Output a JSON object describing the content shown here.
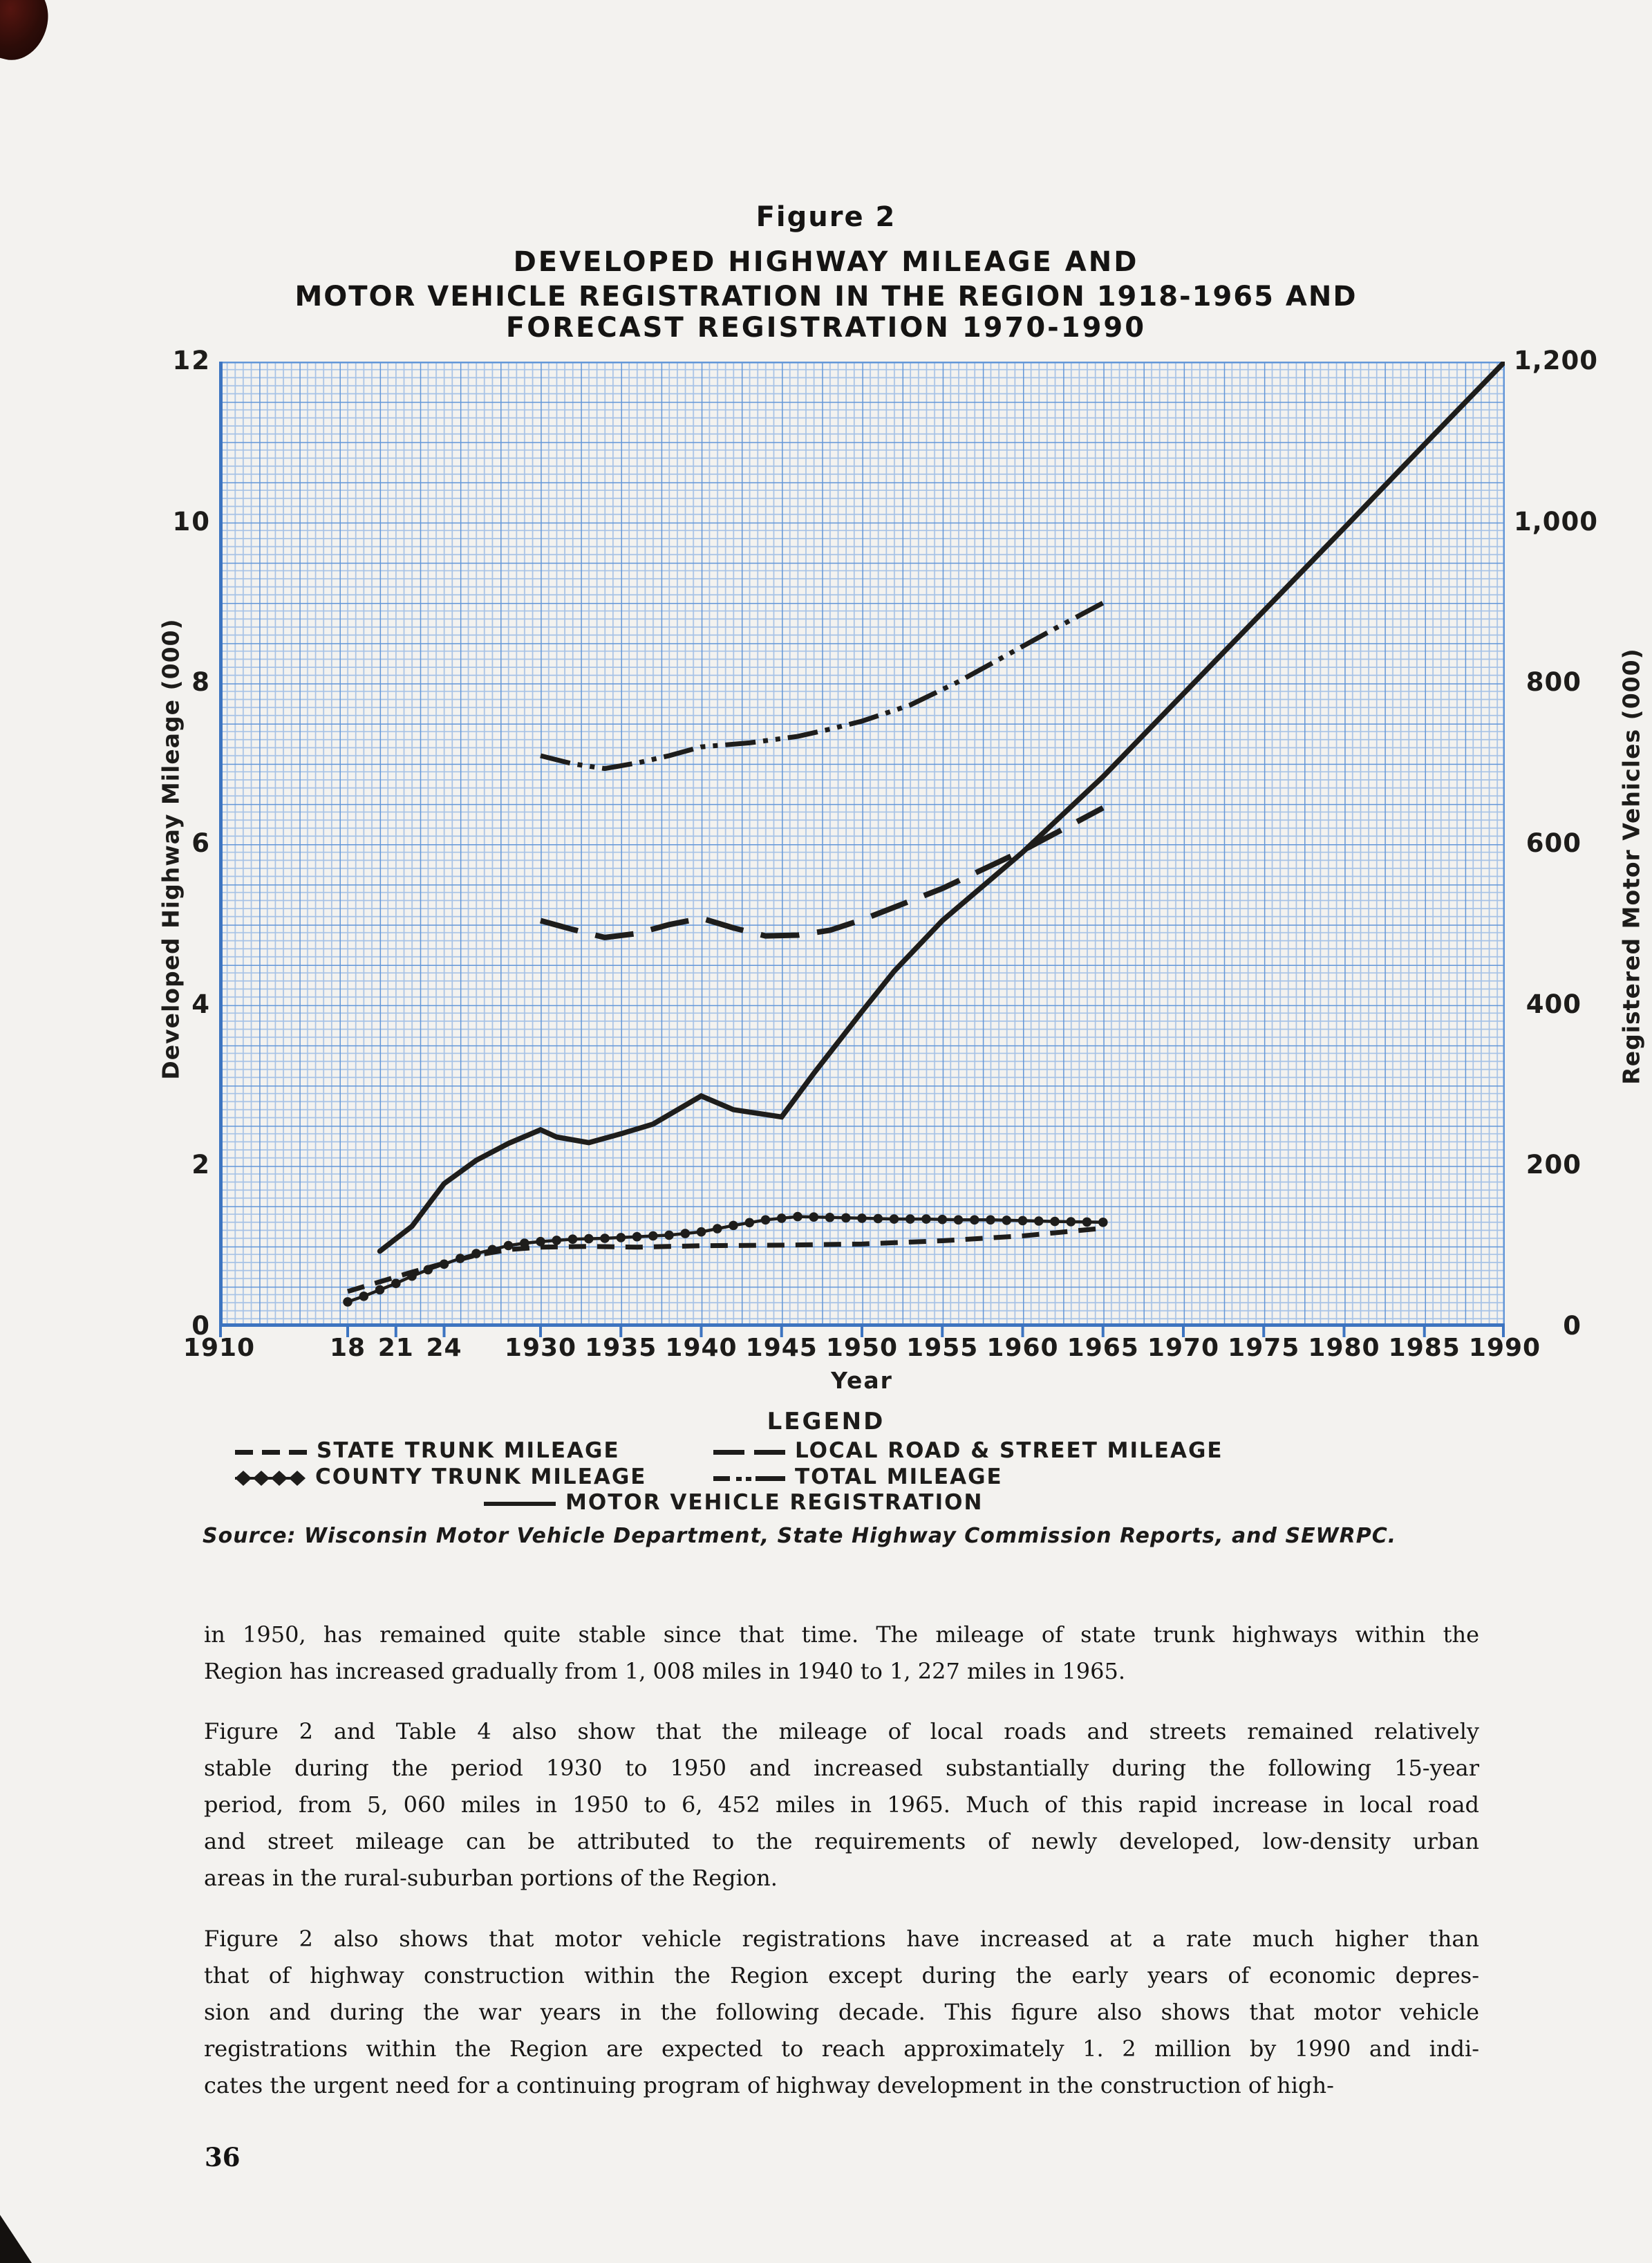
{
  "figure": {
    "label": "Figure 2",
    "title_lines": [
      "DEVELOPED HIGHWAY MILEAGE AND",
      "MOTOR VEHICLE REGISTRATION IN THE REGION 1918-1965 AND",
      "FORECAST REGISTRATION 1970-1990"
    ]
  },
  "colors": {
    "paper": "#f3f2ef",
    "ink": "#1e1d1b",
    "grid_fine": "#a6c2e6",
    "grid_major": "#6296d8",
    "grid_axis": "#3d74c0"
  },
  "chart_data": {
    "type": "line",
    "title": "Developed Highway Mileage and Motor Vehicle Registration in the Region 1918-1965 and Forecast Registration 1970-1990",
    "grid": "blue graph paper",
    "legend_position": "below",
    "x": {
      "label": "Year",
      "range": [
        1910,
        1990
      ],
      "tick_labels": [
        {
          "year": 1910,
          "label": "1910"
        },
        {
          "year": 1918,
          "label": "18"
        },
        {
          "year": 1921,
          "label": "21"
        },
        {
          "year": 1924,
          "label": "24"
        },
        {
          "year": 1930,
          "label": "1930"
        },
        {
          "year": 1935,
          "label": "1935"
        },
        {
          "year": 1940,
          "label": "1940"
        },
        {
          "year": 1945,
          "label": "1945"
        },
        {
          "year": 1950,
          "label": "1950"
        },
        {
          "year": 1955,
          "label": "1955"
        },
        {
          "year": 1960,
          "label": "1960"
        },
        {
          "year": 1965,
          "label": "1965"
        },
        {
          "year": 1970,
          "label": "1970"
        },
        {
          "year": 1975,
          "label": "1975"
        },
        {
          "year": 1980,
          "label": "1980"
        },
        {
          "year": 1985,
          "label": "1985"
        },
        {
          "year": 1990,
          "label": "1990"
        }
      ]
    },
    "y_left": {
      "label": "Developed Highway Mileage (000)",
      "range": [
        0,
        12
      ],
      "ticks": [
        {
          "value": 12,
          "label": "12"
        },
        {
          "value": 10,
          "label": "10"
        },
        {
          "value": 8,
          "label": "8"
        },
        {
          "value": 6,
          "label": "6"
        },
        {
          "value": 4,
          "label": "4"
        },
        {
          "value": 2,
          "label": "2"
        },
        {
          "value": 0,
          "label": "0"
        }
      ]
    },
    "y_right": {
      "label": "Registered Motor Vehicles (000)",
      "range": [
        0,
        1200
      ],
      "ticks": [
        {
          "value": 1200,
          "label": "1,200"
        },
        {
          "value": 1000,
          "label": "1,000"
        },
        {
          "value": 800,
          "label": "800"
        },
        {
          "value": 600,
          "label": "600"
        },
        {
          "value": 400,
          "label": "400"
        },
        {
          "value": 200,
          "label": "200"
        },
        {
          "value": 0,
          "label": "0"
        }
      ]
    },
    "series": [
      {
        "id": "state-trunk-mileage",
        "name": "STATE TRUNK MILEAGE",
        "style": "dashed",
        "axis": "left",
        "points": [
          [
            1918,
            0.44
          ],
          [
            1920,
            0.56
          ],
          [
            1922,
            0.68
          ],
          [
            1924,
            0.79
          ],
          [
            1926,
            0.89
          ],
          [
            1928,
            0.96
          ],
          [
            1930,
            0.99
          ],
          [
            1933,
            1.0
          ],
          [
            1936,
            0.99
          ],
          [
            1940,
            1.008
          ],
          [
            1945,
            1.015
          ],
          [
            1950,
            1.03
          ],
          [
            1955,
            1.07
          ],
          [
            1960,
            1.13
          ],
          [
            1965,
            1.227
          ]
        ]
      },
      {
        "id": "county-trunk-mileage",
        "name": "COUNTY TRUNK MILEAGE",
        "style": "dots",
        "axis": "left",
        "points": [
          [
            1918,
            0.31
          ],
          [
            1919,
            0.38
          ],
          [
            1920,
            0.46
          ],
          [
            1921,
            0.54
          ],
          [
            1922,
            0.63
          ],
          [
            1923,
            0.71
          ],
          [
            1924,
            0.78
          ],
          [
            1925,
            0.85
          ],
          [
            1926,
            0.91
          ],
          [
            1927,
            0.96
          ],
          [
            1928,
            1.01
          ],
          [
            1929,
            1.04
          ],
          [
            1930,
            1.06
          ],
          [
            1932,
            1.09
          ],
          [
            1934,
            1.1
          ],
          [
            1936,
            1.12
          ],
          [
            1938,
            1.14
          ],
          [
            1940,
            1.18
          ],
          [
            1942,
            1.26
          ],
          [
            1944,
            1.33
          ],
          [
            1946,
            1.37
          ],
          [
            1948,
            1.36
          ],
          [
            1950,
            1.35
          ],
          [
            1952,
            1.34
          ],
          [
            1954,
            1.34
          ],
          [
            1956,
            1.33
          ],
          [
            1958,
            1.33
          ],
          [
            1960,
            1.32
          ],
          [
            1962,
            1.31
          ],
          [
            1965,
            1.3
          ]
        ]
      },
      {
        "id": "local-road-street-mileage",
        "name": "LOCAL ROAD & STREET MILEAGE",
        "style": "long-dash",
        "axis": "left",
        "points": [
          [
            1930,
            5.05
          ],
          [
            1932,
            4.94
          ],
          [
            1934,
            4.84
          ],
          [
            1936,
            4.89
          ],
          [
            1938,
            5.0
          ],
          [
            1940,
            5.08
          ],
          [
            1942,
            4.96
          ],
          [
            1944,
            4.86
          ],
          [
            1946,
            4.87
          ],
          [
            1948,
            4.93
          ],
          [
            1950,
            5.06
          ],
          [
            1955,
            5.45
          ],
          [
            1960,
            5.92
          ],
          [
            1965,
            6.452
          ]
        ]
      },
      {
        "id": "total-mileage",
        "name": "TOTAL MILEAGE",
        "style": "dash-dot-dot",
        "axis": "left",
        "points": [
          [
            1930,
            7.1
          ],
          [
            1932,
            7.0
          ],
          [
            1934,
            6.94
          ],
          [
            1936,
            7.01
          ],
          [
            1938,
            7.1
          ],
          [
            1940,
            7.21
          ],
          [
            1943,
            7.26
          ],
          [
            1946,
            7.34
          ],
          [
            1948,
            7.43
          ],
          [
            1950,
            7.53
          ],
          [
            1953,
            7.73
          ],
          [
            1956,
            8.02
          ],
          [
            1959,
            8.35
          ],
          [
            1962,
            8.68
          ],
          [
            1965,
            9.0
          ]
        ]
      },
      {
        "id": "motor-vehicle-registration",
        "name": "MOTOR VEHICLE REGISTRATION",
        "style": "solid",
        "axis": "right",
        "points": [
          [
            1920,
            94
          ],
          [
            1922,
            125
          ],
          [
            1924,
            178
          ],
          [
            1926,
            207
          ],
          [
            1928,
            228
          ],
          [
            1930,
            245
          ],
          [
            1931,
            236
          ],
          [
            1933,
            229
          ],
          [
            1935,
            240
          ],
          [
            1937,
            252
          ],
          [
            1940,
            287
          ],
          [
            1942,
            270
          ],
          [
            1945,
            261
          ],
          [
            1947,
            315
          ],
          [
            1950,
            392
          ],
          [
            1952,
            442
          ],
          [
            1955,
            505
          ],
          [
            1960,
            590
          ],
          [
            1965,
            684
          ],
          [
            1970,
            787
          ],
          [
            1975,
            890
          ],
          [
            1980,
            993
          ],
          [
            1985,
            1097
          ],
          [
            1990,
            1200
          ]
        ]
      }
    ]
  },
  "legend": {
    "title": "LEGEND",
    "items": [
      {
        "label": "STATE TRUNK MILEAGE",
        "symbol": "dashed"
      },
      {
        "label": "LOCAL ROAD & STREET MILEAGE",
        "symbol": "long-dash"
      },
      {
        "label": "COUNTY TRUNK MILEAGE",
        "symbol": "dots"
      },
      {
        "label": "TOTAL MILEAGE",
        "symbol": "dash-dot-dot"
      },
      {
        "label": "MOTOR VEHICLE REGISTRATION",
        "symbol": "solid"
      }
    ]
  },
  "source_note": "Source: Wisconsin Motor Vehicle Department, State Highway Commission Reports, and SEWRPC.",
  "paragraphs": [
    {
      "lines": [
        "in 1950, has remained quite stable since that time.  The mileage of state trunk highways within the",
        "Region has increased gradually from 1, 008 miles in 1940 to 1, 227 miles in 1965."
      ]
    },
    {
      "lines": [
        "Figure 2 and Table 4 also show that the mileage of local roads and streets remained relatively",
        "stable during the period 1930 to 1950 and increased substantially during the following 15-year",
        "period, from 5, 060 miles in 1950 to 6, 452 miles in 1965.  Much of this rapid increase in local road",
        "and street mileage can be attributed to the requirements of newly developed,  low-density urban",
        "areas in the rural-suburban portions of the Region."
      ]
    },
    {
      "lines": [
        "Figure 2 also shows that motor vehicle registrations have increased at a rate much higher than",
        "that of highway construction within the Region except during the early years of economic depres-",
        "sion and during the war years in the following decade.  This figure also shows that motor vehicle",
        "registrations within the Region are expected to reach approximately 1. 2 million by 1990 and indi-",
        "cates the urgent need for a continuing program of highway development in the construction of high-"
      ]
    }
  ],
  "page": {
    "number": "36"
  }
}
